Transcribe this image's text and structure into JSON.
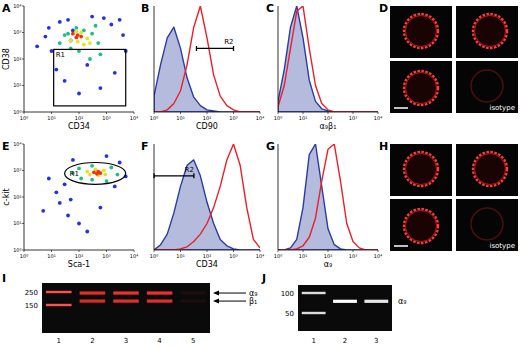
{
  "chart_data": [
    {
      "type": "scatter",
      "title": "A",
      "xlabel": "CD34",
      "ylabel": "CD38",
      "log": true,
      "xlim": [
        1,
        10000
      ],
      "ylim": [
        1,
        10000
      ],
      "xticks": [
        {
          "value": 1,
          "label": "10⁰"
        },
        {
          "value": 10,
          "label": "10¹"
        },
        {
          "value": 100,
          "label": "10²"
        },
        {
          "value": 1000,
          "label": "10³"
        },
        {
          "value": 10000,
          "label": "10⁴"
        }
      ],
      "yticks": [
        {
          "value": 1,
          "label": "10⁰"
        },
        {
          "value": 10,
          "label": "10¹"
        },
        {
          "value": 100,
          "label": "10²"
        },
        {
          "value": 1000,
          "label": "10³"
        },
        {
          "value": 10000,
          "label": "10⁴"
        }
      ],
      "series": [
        {
          "color": "#2233dd",
          "x": [
            3,
            8,
            20,
            15,
            40,
            300,
            1500,
            4000,
            5000,
            2000,
            600,
            100,
            30,
            10,
            6,
            60,
            800,
            3000,
            200,
            50
          ],
          "values": [
            300,
            1500,
            2500,
            40,
            3000,
            4000,
            2000,
            800,
            200,
            30,
            8,
            5,
            15,
            200,
            700,
            1200,
            3500,
            3000,
            60,
            500
          ]
        },
        {
          "color": "#22bb88",
          "x": [
            20,
            40,
            80,
            150,
            300,
            500,
            600,
            250,
            100,
            50,
            30,
            400
          ],
          "values": [
            400,
            900,
            1500,
            1200,
            900,
            400,
            150,
            100,
            200,
            250,
            800,
            1800
          ]
        },
        {
          "color": "#e8e020",
          "x": [
            50,
            80,
            120,
            200,
            250,
            150,
            90
          ],
          "values": [
            500,
            1100,
            1000,
            600,
            400,
            350,
            450
          ]
        },
        {
          "color": "#ee3311",
          "x": [
            60,
            90,
            120,
            80
          ],
          "values": [
            900,
            800,
            700,
            650
          ]
        }
      ],
      "gate": {
        "label": "R1",
        "type": "rectangle",
        "x": [
          12,
          5000
        ],
        "y": [
          1.7,
          230
        ]
      }
    },
    {
      "type": "line",
      "title": "B",
      "xlabel": "CD90",
      "log": "x",
      "xlim": [
        1,
        10000
      ],
      "ylim": [
        0,
        100
      ],
      "tick_labels": "x",
      "xticks": [
        {
          "value": 1,
          "label": "10⁰"
        },
        {
          "value": 10,
          "label": "10¹"
        },
        {
          "value": 100,
          "label": "10²"
        },
        {
          "value": 1000,
          "label": "10³"
        },
        {
          "value": 10000,
          "label": "10⁴"
        }
      ],
      "x": [
        1,
        1.78,
        3.16,
        5.62,
        10,
        17.8,
        31.6,
        56.2,
        100,
        178,
        316,
        562,
        1000,
        1778,
        3162,
        5623,
        10000
      ],
      "series": [
        {
          "type": "area",
          "color": "#2b3c9e",
          "values": [
            15,
            45,
            70,
            80,
            60,
            32,
            14,
            6,
            2,
            1,
            0,
            0,
            0,
            0,
            0,
            0,
            0
          ]
        },
        {
          "type": "line",
          "color": "#e8202a",
          "values": [
            0,
            0,
            2,
            8,
            20,
            45,
            80,
            100,
            70,
            35,
            15,
            6,
            2,
            0,
            0,
            0,
            0
          ]
        }
      ],
      "gate": {
        "label": "R2",
        "x": [
          40,
          1000
        ],
        "y": 60
      }
    },
    {
      "type": "line",
      "title": "C",
      "xlabel": "α₉β₁",
      "log": "x",
      "xlim": [
        1,
        10000
      ],
      "ylim": [
        0,
        100
      ],
      "tick_labels": "x",
      "xticks": [
        {
          "value": 1,
          "label": "10⁰"
        },
        {
          "value": 10,
          "label": "10¹"
        },
        {
          "value": 100,
          "label": "10²"
        },
        {
          "value": 1000,
          "label": "10³"
        },
        {
          "value": 10000,
          "label": "10⁴"
        }
      ],
      "x": [
        1,
        1.78,
        3.16,
        5.62,
        10,
        17.8,
        31.6,
        56.2,
        100,
        178,
        316,
        562,
        1000,
        1778,
        3162,
        5623,
        10000
      ],
      "series": [
        {
          "type": "area",
          "color": "#2b3c9e",
          "values": [
            10,
            40,
            80,
            100,
            70,
            30,
            10,
            3,
            1,
            0,
            0,
            0,
            0,
            0,
            0,
            0,
            0
          ]
        },
        {
          "type": "line",
          "color": "#e8202a",
          "values": [
            5,
            25,
            60,
            95,
            100,
            60,
            25,
            8,
            2,
            0,
            0,
            0,
            0,
            0,
            0,
            0,
            0
          ]
        }
      ]
    },
    {
      "type": "scatter",
      "title": "E",
      "xlabel": "Sca-1",
      "ylabel": "c-kit",
      "log": true,
      "xlim": [
        1,
        10000
      ],
      "ylim": [
        1,
        10000
      ],
      "xticks": [
        {
          "value": 1,
          "label": "10⁰"
        },
        {
          "value": 10,
          "label": "10¹"
        },
        {
          "value": 100,
          "label": "10²"
        },
        {
          "value": 1000,
          "label": "10³"
        },
        {
          "value": 10000,
          "label": "10⁴"
        }
      ],
      "yticks": [
        {
          "value": 1,
          "label": "10⁰"
        },
        {
          "value": 10,
          "label": "10¹"
        },
        {
          "value": 100,
          "label": "10²"
        },
        {
          "value": 1000,
          "label": "10³"
        },
        {
          "value": 10000,
          "label": "10⁴"
        }
      ],
      "series": [
        {
          "color": "#2233dd",
          "x": [
            15,
            5,
            40,
            100,
            20,
            30,
            60,
            3000,
            5000,
            2000,
            200,
            8,
            50,
            600,
            1000
          ],
          "values": [
            150,
            30,
            20,
            10,
            60,
            300,
            2500,
            2000,
            600,
            250,
            5,
            500,
            80,
            40,
            3500
          ]
        },
        {
          "color": "#22bb88",
          "x": [
            60,
            100,
            300,
            1500,
            2500,
            1000,
            300,
            120
          ],
          "values": [
            800,
            1200,
            1500,
            1300,
            700,
            400,
            450,
            500
          ]
        },
        {
          "color": "#e8e020",
          "x": [
            200,
            400,
            800,
            900,
            500,
            250
          ],
          "values": [
            900,
            1100,
            1000,
            700,
            650,
            700
          ]
        },
        {
          "color": "#ee3311",
          "x": [
            350,
            500,
            600,
            450
          ],
          "values": [
            850,
            900,
            800,
            750
          ]
        }
      ],
      "gate": {
        "label": "R1",
        "type": "ellipse",
        "x": [
          30,
          5000
        ],
        "y": [
          300,
          2000
        ]
      }
    },
    {
      "type": "line",
      "title": "F",
      "xlabel": "CD34",
      "log": "x",
      "xlim": [
        1,
        10000
      ],
      "ylim": [
        0,
        100
      ],
      "tick_labels": "x",
      "xticks": [
        {
          "value": 1,
          "label": "10⁰"
        },
        {
          "value": 10,
          "label": "10¹"
        },
        {
          "value": 100,
          "label": "10²"
        },
        {
          "value": 1000,
          "label": "10³"
        },
        {
          "value": 10000,
          "label": "10⁴"
        }
      ],
      "x": [
        1,
        1.78,
        3.16,
        5.62,
        10,
        17.8,
        31.6,
        56.2,
        100,
        178,
        316,
        562,
        1000,
        1778,
        3162,
        5623,
        10000
      ],
      "series": [
        {
          "type": "area",
          "color": "#2b3c9e",
          "values": [
            0,
            5,
            15,
            35,
            60,
            80,
            85,
            70,
            45,
            25,
            10,
            4,
            1,
            0,
            0,
            0,
            0
          ]
        },
        {
          "type": "line",
          "color": "#e8202a",
          "values": [
            0,
            0,
            0,
            0,
            1,
            3,
            8,
            15,
            25,
            40,
            60,
            85,
            100,
            80,
            40,
            10,
            2
          ]
        }
      ],
      "gate": {
        "label": "R2",
        "x": [
          1,
          32
        ],
        "y": 70
      }
    },
    {
      "type": "line",
      "title": "G",
      "xlabel": "α₉",
      "log": "x",
      "xlim": [
        1,
        10000
      ],
      "ylim": [
        0,
        100
      ],
      "tick_labels": "x",
      "xticks": [
        {
          "value": 1,
          "label": "10⁰"
        },
        {
          "value": 10,
          "label": "10¹"
        },
        {
          "value": 100,
          "label": "10²"
        },
        {
          "value": 1000,
          "label": "10³"
        },
        {
          "value": 10000,
          "label": "10⁴"
        }
      ],
      "x": [
        1,
        1.78,
        3.16,
        5.62,
        10,
        17.8,
        31.6,
        56.2,
        100,
        178,
        316,
        562,
        1000,
        1778,
        3162,
        5623,
        10000
      ],
      "series": [
        {
          "type": "area",
          "color": "#2b3c9e",
          "values": [
            0,
            0,
            2,
            10,
            40,
            90,
            100,
            60,
            20,
            5,
            1,
            0,
            0,
            0,
            0,
            0,
            0
          ]
        },
        {
          "type": "line",
          "color": "#e8202a",
          "values": [
            0,
            0,
            0,
            1,
            4,
            12,
            30,
            65,
            95,
            100,
            65,
            25,
            8,
            2,
            0,
            0,
            0
          ]
        }
      ]
    }
  ],
  "micrographs": [
    {
      "label": "D",
      "inset_label": "isotype"
    },
    {
      "label": "H",
      "inset_label": "isotype"
    }
  ],
  "gels": [
    {
      "label": "I",
      "markers": [
        250,
        150
      ],
      "lanes": [
        "1",
        "2",
        "3",
        "4",
        "5"
      ],
      "bands": [
        {
          "label": "α₉",
          "size": 240,
          "intensity": [
            0,
            90,
            95,
            95,
            8
          ]
        },
        {
          "label": "β₁",
          "size": 175,
          "intensity": [
            0,
            85,
            90,
            90,
            8
          ]
        }
      ]
    },
    {
      "label": "J",
      "markers": [
        100,
        50
      ],
      "lanes": [
        "1",
        "2",
        "3"
      ],
      "bands": [
        {
          "label": "α₉",
          "size": 75,
          "intensity": [
            0,
            100,
            90
          ]
        }
      ]
    }
  ]
}
